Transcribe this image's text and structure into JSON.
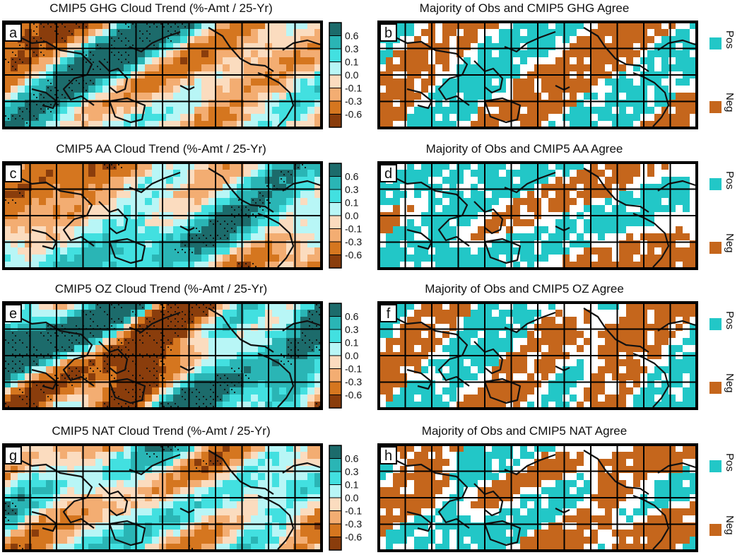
{
  "colors": {
    "pos_dark": "#1c6b6b",
    "pos_mid": "#2ab5b5",
    "pos_light": "#42e0e0",
    "pos_pale": "#b8f6f6",
    "neg_pale": "#fbdcbf",
    "neg_light": "#f3ad72",
    "neg_mid": "#d5761f",
    "neg_dark": "#8a3d0c",
    "agree_pos": "#22c7c7",
    "agree_neg": "#c5661c",
    "coast": "#111111",
    "frame": "#000000"
  },
  "colorbar": {
    "ticks": [
      "0.6",
      "0.3",
      "0.1",
      "0.0",
      "-0.1",
      "-0.3",
      "-0.6"
    ]
  },
  "agree_legend": {
    "pos": "Pos",
    "neg": "Neg"
  },
  "panels": {
    "a": {
      "label": "a",
      "title": "CMIP5 GHG Cloud Trend (%-Amt / 25-Yr)"
    },
    "b": {
      "label": "b",
      "title": "Majority of Obs and CMIP5 GHG Agree"
    },
    "c": {
      "label": "c",
      "title": "CMIP5 AA Cloud Trend (%-Amt / 25-Yr)"
    },
    "d": {
      "label": "d",
      "title": "Majority of Obs and CMIP5 AA Agree"
    },
    "e": {
      "label": "e",
      "title": "CMIP5 OZ Cloud Trend (%-Amt / 25-Yr)"
    },
    "f": {
      "label": "f",
      "title": "Majority of Obs and CMIP5 OZ Agree"
    },
    "g": {
      "label": "g",
      "title": "CMIP5 NAT Cloud Trend (%-Amt / 25-Yr)"
    },
    "h": {
      "label": "h",
      "title": "Majority of Obs and CMIP5 NAT Agree"
    }
  }
}
